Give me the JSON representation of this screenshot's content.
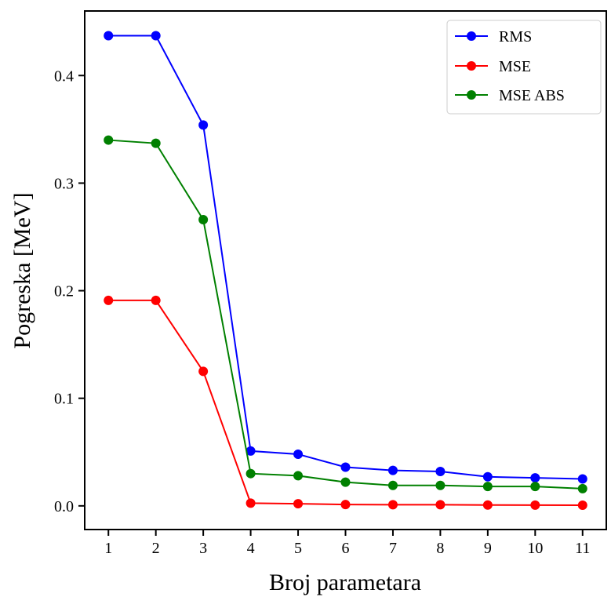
{
  "chart_data": {
    "type": "line",
    "title": "",
    "xlabel": "Broj parametara",
    "ylabel": "Pogreska [MeV]",
    "x": [
      1,
      2,
      3,
      4,
      5,
      6,
      7,
      8,
      9,
      10,
      11
    ],
    "xlim": [
      0.5,
      11.5
    ],
    "ylim": [
      -0.022,
      0.46
    ],
    "xticks": [
      1,
      2,
      3,
      4,
      5,
      6,
      7,
      8,
      9,
      10,
      11
    ],
    "xtick_labels": [
      "1",
      "2",
      "3",
      "4",
      "5",
      "6",
      "7",
      "8",
      "9",
      "10",
      "11"
    ],
    "yticks": [
      0.0,
      0.1,
      0.2,
      0.3,
      0.4
    ],
    "ytick_labels": [
      "0.0",
      "0.1",
      "0.2",
      "0.3",
      "0.4"
    ],
    "grid": false,
    "legend_position": "top-right",
    "series": [
      {
        "name": "RMS",
        "color": "#0000ff",
        "marker": "circle",
        "values": [
          0.437,
          0.437,
          0.354,
          0.051,
          0.048,
          0.036,
          0.033,
          0.032,
          0.027,
          0.026,
          0.025
        ]
      },
      {
        "name": "MSE",
        "color": "#ff0000",
        "marker": "circle",
        "values": [
          0.191,
          0.191,
          0.125,
          0.0025,
          0.002,
          0.0012,
          0.0011,
          0.0011,
          0.0008,
          0.0007,
          0.0006
        ]
      },
      {
        "name": "MSE ABS",
        "color": "#008000",
        "marker": "circle",
        "values": [
          0.34,
          0.337,
          0.266,
          0.03,
          0.028,
          0.022,
          0.019,
          0.019,
          0.018,
          0.018,
          0.016
        ]
      }
    ]
  }
}
